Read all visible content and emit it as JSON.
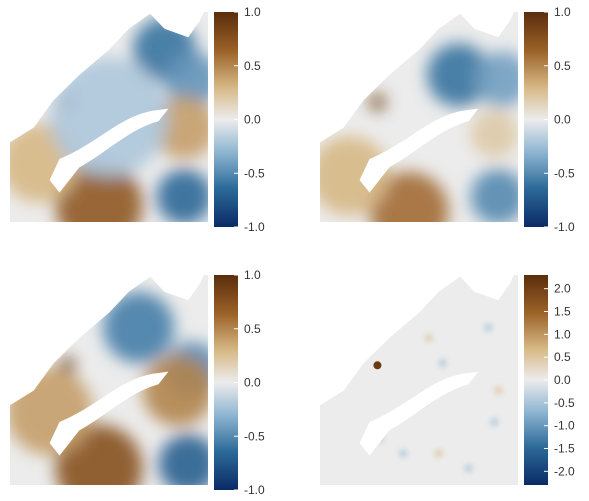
{
  "chart_data": [
    {
      "type": "heatmap",
      "title": "",
      "colorbar": {
        "range": [
          -1.0,
          1.0
        ],
        "ticks": [
          1.0,
          0.5,
          0.0,
          -0.5,
          -1.0
        ],
        "tick_labels": [
          "1.0",
          "0.5",
          "0.0",
          "-0.5",
          "-1.0"
        ]
      },
      "features": [
        {
          "value": -0.6,
          "desc": "north-east blob"
        },
        {
          "value": -0.45,
          "desc": "east blob"
        },
        {
          "value": 0.4,
          "desc": "mid-east warm"
        },
        {
          "value": 0.7,
          "desc": "bottom center warm"
        },
        {
          "value": 0.3,
          "desc": "left warm"
        },
        {
          "value": 0.95,
          "desc": "islands"
        },
        {
          "value": -0.65,
          "desc": "bottom right cool"
        },
        {
          "value": -0.2,
          "desc": "center cool"
        }
      ]
    },
    {
      "type": "heatmap",
      "title": "",
      "colorbar": {
        "range": [
          -1.0,
          1.0
        ],
        "ticks": [
          1.0,
          0.5,
          0.0,
          -0.5,
          -1.0
        ],
        "tick_labels": [
          "1.0",
          "0.5",
          "0.0",
          "-0.5",
          "-1.0"
        ]
      },
      "features": [
        {
          "value": -0.6,
          "desc": "north-east blob"
        },
        {
          "value": -0.4,
          "desc": "east blob"
        },
        {
          "value": 0.2,
          "desc": "mid-east warm"
        },
        {
          "value": 0.6,
          "desc": "bottom center warm"
        },
        {
          "value": 0.3,
          "desc": "left warm"
        },
        {
          "value": 0.95,
          "desc": "islands"
        },
        {
          "value": -0.5,
          "desc": "bottom right cool"
        }
      ]
    },
    {
      "type": "heatmap",
      "title": "",
      "colorbar": {
        "range": [
          -1.0,
          1.0
        ],
        "ticks": [
          1.0,
          0.5,
          0.0,
          -0.5,
          -1.0
        ],
        "tick_labels": [
          "1.0",
          "0.5",
          "0.0",
          "-0.5",
          "-1.0"
        ]
      },
      "features": [
        {
          "value": -0.55,
          "desc": "north-east blob"
        },
        {
          "value": -0.5,
          "desc": "east blob"
        },
        {
          "value": 0.5,
          "desc": "mid-east warm"
        },
        {
          "value": 0.75,
          "desc": "bottom center warm"
        },
        {
          "value": 0.4,
          "desc": "left warm"
        },
        {
          "value": 0.95,
          "desc": "islands"
        },
        {
          "value": -0.7,
          "desc": "bottom right cool"
        }
      ]
    },
    {
      "type": "heatmap",
      "title": "",
      "colorbar": {
        "range": [
          -2.3,
          2.3
        ],
        "ticks": [
          2.0,
          1.5,
          1.0,
          0.5,
          0.0,
          -0.5,
          -1.0,
          -1.5,
          -2.0
        ],
        "tick_labels": [
          "2.0",
          "1.5",
          "1.0",
          "0.5",
          "0.0",
          "-0.5",
          "-1.0",
          "-1.5",
          "-2.0"
        ]
      },
      "features": [
        {
          "value": 2.1,
          "desc": "islands"
        },
        {
          "value": -0.5,
          "desc": "scattered cool spots"
        },
        {
          "value": 0.5,
          "desc": "scattered warm spots"
        }
      ]
    }
  ]
}
